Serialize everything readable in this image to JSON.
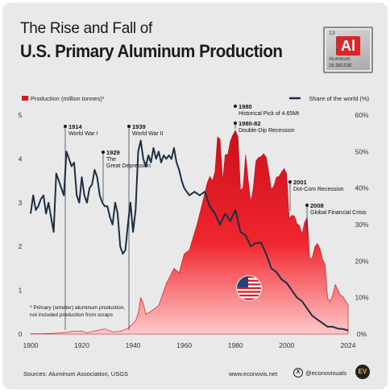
{
  "header": {
    "title_line1": "The Rise and Fall of",
    "title_line2": "U.S. Primary Aluminum Production"
  },
  "element_tile": {
    "number": "13",
    "symbol": "Al",
    "name": "Aluminum",
    "mass": "26.981538"
  },
  "legend": {
    "left_label": "Production (million tonnes)*",
    "right_label": "Share of the world (%)"
  },
  "footnote": {
    "line1": "* Primary (smelter) aluminum production,",
    "line2": "not included production from scraps"
  },
  "footer": {
    "source": "Sources: Aluminum Association, USGS",
    "site": "www.econovis.net",
    "handle": "@econovisuals",
    "logo_text": "EV",
    "x_icon_text": "X"
  },
  "colors": {
    "production_fill_top": "#e0151f",
    "production_fill_bottom": "#ffd0d0",
    "share_line": "#1b2f45",
    "background": "#e9e9e9",
    "flag_red": "#d61e2a",
    "flag_blue": "#2a3f7a"
  },
  "chart_data": {
    "type": "area",
    "x_range": [
      1900,
      2024
    ],
    "y_left_range": [
      0,
      5
    ],
    "y_right_range": [
      0,
      60
    ],
    "x_ticks": [
      "1900",
      "1920",
      "1940",
      "1960",
      "1980",
      "2000",
      "2024"
    ],
    "y_left_ticks": [
      "0",
      "1",
      "2",
      "3",
      "4",
      "5"
    ],
    "y_right_ticks": [
      "0%",
      "10%",
      "20%",
      "30%",
      "40%",
      "50%",
      "60%"
    ],
    "series": [
      {
        "name": "Production (million tonnes)*",
        "axis": "left",
        "x": [
          1900,
          1905,
          1910,
          1914,
          1916,
          1918,
          1920,
          1922,
          1925,
          1929,
          1932,
          1935,
          1938,
          1941,
          1942,
          1943,
          1944,
          1945,
          1947,
          1950,
          1953,
          1956,
          1958,
          1960,
          1962,
          1965,
          1967,
          1969,
          1970,
          1971,
          1972,
          1973,
          1974,
          1975,
          1976,
          1977,
          1978,
          1979,
          1980,
          1981,
          1982,
          1983,
          1984,
          1985,
          1986,
          1987,
          1988,
          1989,
          1990,
          1991,
          1992,
          1993,
          1994,
          1995,
          1996,
          1997,
          1998,
          1999,
          2000,
          2001,
          2002,
          2003,
          2004,
          2005,
          2006,
          2007,
          2008,
          2009,
          2010,
          2011,
          2012,
          2013,
          2014,
          2015,
          2016,
          2017,
          2018,
          2019,
          2020,
          2021,
          2022,
          2023,
          2024
        ],
        "y": [
          0.005,
          0.01,
          0.02,
          0.04,
          0.06,
          0.06,
          0.07,
          0.03,
          0.07,
          0.12,
          0.05,
          0.06,
          0.13,
          0.3,
          0.47,
          0.83,
          0.7,
          0.45,
          0.52,
          0.65,
          1.15,
          1.5,
          1.4,
          1.83,
          1.92,
          2.5,
          2.97,
          3.45,
          3.6,
          3.5,
          3.7,
          4.5,
          4.45,
          3.5,
          4.1,
          4.1,
          4.4,
          4.55,
          4.65,
          4.5,
          3.27,
          3.35,
          4.1,
          3.5,
          3.0,
          3.35,
          3.95,
          4.03,
          4.05,
          4.12,
          4.04,
          3.7,
          3.3,
          3.38,
          3.58,
          3.6,
          3.7,
          3.78,
          3.67,
          2.64,
          2.71,
          2.7,
          2.52,
          2.48,
          2.28,
          2.55,
          2.66,
          1.73,
          1.73,
          1.99,
          2.07,
          1.95,
          1.71,
          1.59,
          0.82,
          0.74,
          0.89,
          1.13,
          1.01,
          0.88,
          0.86,
          0.75,
          0.67
        ]
      },
      {
        "name": "Share of the world (%)",
        "axis": "right",
        "x": [
          1900,
          1901,
          1902,
          1903,
          1904,
          1905,
          1906,
          1907,
          1908,
          1909,
          1910,
          1911,
          1912,
          1913,
          1914,
          1915,
          1916,
          1917,
          1918,
          1919,
          1920,
          1921,
          1922,
          1923,
          1924,
          1925,
          1926,
          1927,
          1928,
          1929,
          1930,
          1931,
          1932,
          1933,
          1934,
          1935,
          1936,
          1937,
          1938,
          1939,
          1940,
          1941,
          1942,
          1943,
          1944,
          1945,
          1946,
          1947,
          1948,
          1949,
          1950,
          1951,
          1952,
          1953,
          1954,
          1955,
          1956,
          1957,
          1958,
          1959,
          1960,
          1962,
          1964,
          1966,
          1968,
          1970,
          1972,
          1974,
          1976,
          1978,
          1980,
          1982,
          1984,
          1986,
          1988,
          1990,
          1992,
          1994,
          1996,
          1998,
          2000,
          2002,
          2004,
          2006,
          2008,
          2010,
          2012,
          2014,
          2016,
          2018,
          2020,
          2022,
          2024
        ],
        "y": [
          33,
          38,
          34,
          35,
          37,
          38,
          33,
          36,
          32,
          28,
          44,
          42,
          40,
          38,
          50,
          48,
          46,
          47,
          38,
          36,
          43,
          38,
          36,
          40,
          41,
          45,
          43,
          38,
          36,
          35,
          35,
          32,
          30,
          36,
          33,
          24,
          22,
          23,
          30,
          36,
          28,
          34,
          50,
          53,
          48,
          46,
          49,
          47,
          51,
          48,
          50,
          47,
          49,
          48,
          49,
          48,
          51,
          47,
          45,
          42,
          40,
          38,
          39,
          38,
          39,
          35,
          33,
          30,
          33,
          31,
          34,
          28,
          27,
          24,
          25,
          25,
          22,
          18,
          17,
          15,
          14,
          12,
          10,
          9,
          7,
          5,
          4,
          3,
          2,
          2,
          1.5,
          1.4,
          1
        ]
      }
    ],
    "annotations": [
      {
        "year": "1914",
        "text": "World War I"
      },
      {
        "year": "1929",
        "text": "The Great Depression"
      },
      {
        "year": "1939",
        "text": "World War II"
      },
      {
        "year": "1980",
        "text": "Historical Pick of 4.65Mt"
      },
      {
        "year": "1980-82",
        "text": "Double-Dip Recession"
      },
      {
        "year": "2001",
        "text": "Dot-Com Recession"
      },
      {
        "year": "2008",
        "text": "Global Financial Crisis"
      }
    ],
    "grid": false,
    "legend_placement": "top"
  }
}
